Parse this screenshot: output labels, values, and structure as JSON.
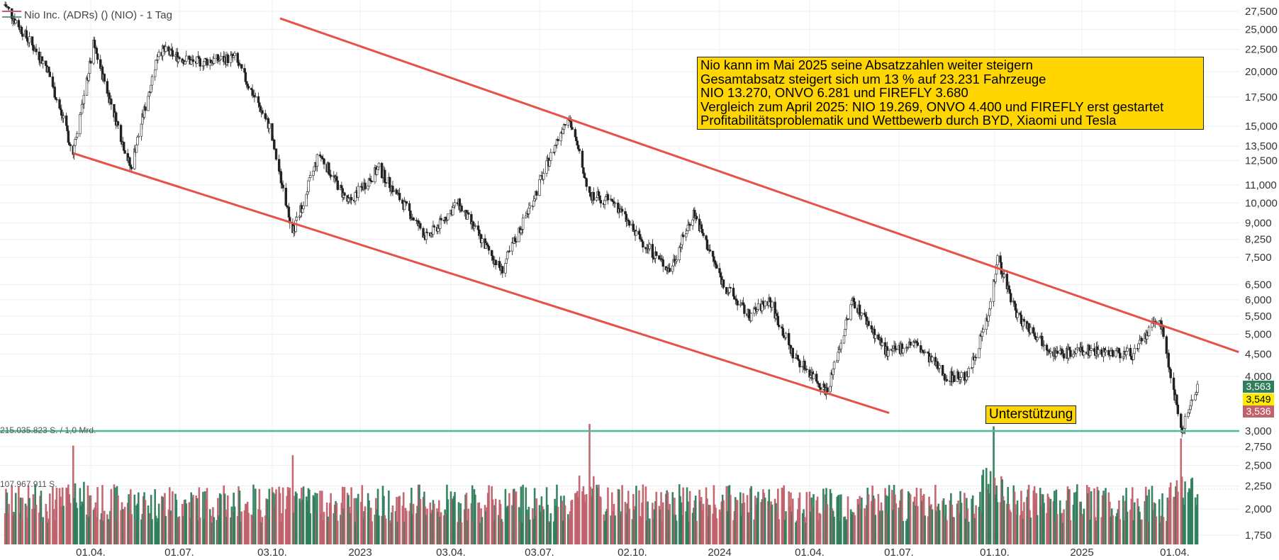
{
  "legend": {
    "title": "Nio Inc. (ADRs) () (NIO) - 1 Tag",
    "volume_label": "215.035.823 S. / 1,0 Mrd.",
    "volume_avg_label": "107.967.911 S."
  },
  "annotation": {
    "lines": [
      "Nio kann im Mai 2025 seine Absatzzahlen weiter steigern",
      "Gesamtabsatz steigert sich um 13 % auf 23.231 Fahrzeuge",
      "NIO 13.270, ONVO 6.281 und FIREFLY 3.680",
      "Vergleich zum April 2025: NIO 19.269, ONVO 4.400 und FIREFLY erst gestartet",
      "Profitabilitätsproblematik und Wettbewerb durch BYD, Xiaomi und Tesla"
    ]
  },
  "support_label": "Unterstützung",
  "price_labels": {
    "high": "3,563",
    "last": "3,549",
    "low": "3,536"
  },
  "colors": {
    "up": "#2e7d5b",
    "down": "#c0616b",
    "channel": "#e8504a",
    "support_line": "#4dbb9a",
    "annotation_bg": "#ffd600"
  },
  "chart_data": {
    "type": "candlestick",
    "ticker": "NIO",
    "y_scale": "log",
    "y_ticks": [
      "27,500",
      "25,000",
      "22,500",
      "20,000",
      "17,500",
      "15,000",
      "13,500",
      "12,500",
      "11,000",
      "10,000",
      "9,000",
      "8,250",
      "7,500",
      "6,500",
      "6,000",
      "5,500",
      "5,000",
      "4,500",
      "4,000",
      "3,000",
      "2,750",
      "2,500",
      "2,250",
      "2,000",
      "1,750"
    ],
    "y_tick_values": [
      27.5,
      25,
      22.5,
      20,
      17.5,
      15,
      13.5,
      12.5,
      11,
      10,
      9,
      8.25,
      7.5,
      6.5,
      6,
      5.5,
      5,
      4.5,
      4,
      3,
      2.75,
      2.5,
      2.25,
      2,
      1.75
    ],
    "x_ticks": [
      "01.04.",
      "01.07.",
      "03.10.",
      "2023",
      "03.04.",
      "03.07.",
      "02.10.",
      "2024",
      "01.04.",
      "01.07.",
      "01.10.",
      "2025",
      "01.04."
    ],
    "price_path": [
      {
        "date": "2022-01-03",
        "price": 28.5
      },
      {
        "date": "2022-01-25",
        "price": 24.0
      },
      {
        "date": "2022-02-15",
        "price": 20.5
      },
      {
        "date": "2022-03-14",
        "price": 13.0
      },
      {
        "date": "2022-04-04",
        "price": 23.0
      },
      {
        "date": "2022-05-12",
        "price": 12.0
      },
      {
        "date": "2022-06-10",
        "price": 22.5
      },
      {
        "date": "2022-07-15",
        "price": 21.0
      },
      {
        "date": "2022-08-26",
        "price": 21.5
      },
      {
        "date": "2022-09-30",
        "price": 15.0
      },
      {
        "date": "2022-10-24",
        "price": 8.5
      },
      {
        "date": "2022-11-20",
        "price": 13.0
      },
      {
        "date": "2022-12-20",
        "price": 10.0
      },
      {
        "date": "2023-01-20",
        "price": 12.0
      },
      {
        "date": "2023-03-10",
        "price": 8.3
      },
      {
        "date": "2023-04-10",
        "price": 10.0
      },
      {
        "date": "2023-05-25",
        "price": 7.0
      },
      {
        "date": "2023-06-25",
        "price": 10.0
      },
      {
        "date": "2023-07-31",
        "price": 16.0
      },
      {
        "date": "2023-08-21",
        "price": 10.5
      },
      {
        "date": "2023-09-15",
        "price": 10.0
      },
      {
        "date": "2023-10-05",
        "price": 8.5
      },
      {
        "date": "2023-11-10",
        "price": 7.0
      },
      {
        "date": "2023-12-05",
        "price": 9.5
      },
      {
        "date": "2024-01-05",
        "price": 6.5
      },
      {
        "date": "2024-01-31",
        "price": 5.5
      },
      {
        "date": "2024-02-20",
        "price": 6.0
      },
      {
        "date": "2024-03-15",
        "price": 4.5
      },
      {
        "date": "2024-04-19",
        "price": 3.7
      },
      {
        "date": "2024-05-15",
        "price": 6.0
      },
      {
        "date": "2024-06-20",
        "price": 4.5
      },
      {
        "date": "2024-07-15",
        "price": 4.8
      },
      {
        "date": "2024-08-15",
        "price": 4.0
      },
      {
        "date": "2024-09-05",
        "price": 4.0
      },
      {
        "date": "2024-09-25",
        "price": 5.5
      },
      {
        "date": "2024-10-04",
        "price": 7.5
      },
      {
        "date": "2024-10-25",
        "price": 5.5
      },
      {
        "date": "2024-12-05",
        "price": 4.5
      },
      {
        "date": "2025-01-10",
        "price": 4.6
      },
      {
        "date": "2025-02-20",
        "price": 4.5
      },
      {
        "date": "2025-03-17",
        "price": 5.5
      },
      {
        "date": "2025-04-08",
        "price": 3.0
      },
      {
        "date": "2025-04-28",
        "price": 4.1
      },
      {
        "date": "2025-05-30",
        "price": 3.55
      }
    ],
    "volume_spikes": [
      {
        "date": "2022-03-14",
        "level": 0.82
      },
      {
        "date": "2022-10-24",
        "level": 0.74
      },
      {
        "date": "2023-08-21",
        "level": 1.0
      },
      {
        "date": "2024-09-30",
        "level": 0.98
      },
      {
        "date": "2025-04-07",
        "level": 0.88
      }
    ],
    "trendlines": [
      {
        "name": "upper",
        "from": {
          "date": "2022-10-11",
          "price": 26.5
        },
        "to": {
          "date": "2025-06-02",
          "price": 4.55
        }
      },
      {
        "name": "lower",
        "from": {
          "date": "2022-03-14",
          "price": 13.0
        },
        "to": {
          "date": "2024-06-21",
          "price": 3.3
        }
      }
    ],
    "support_level": 3.0
  }
}
